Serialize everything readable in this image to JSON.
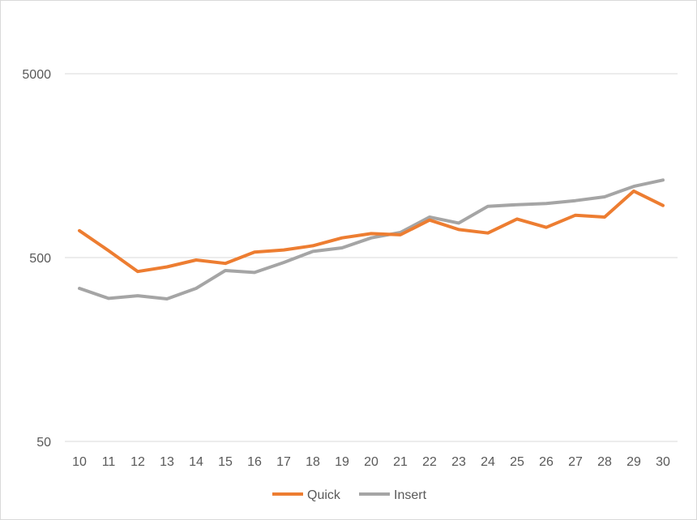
{
  "chart_data": {
    "type": "line",
    "y_scale": "log",
    "ylim": [
      50,
      10000
    ],
    "y_ticks": [
      "50",
      "500",
      "5000"
    ],
    "y_tick_values": [
      50,
      500,
      5000
    ],
    "categories": [
      "10",
      "11",
      "12",
      "13",
      "14",
      "15",
      "16",
      "17",
      "18",
      "19",
      "20",
      "21",
      "22",
      "23",
      "24",
      "25",
      "26",
      "27",
      "28",
      "29",
      "30"
    ],
    "grid": true,
    "legend_position": "bottom",
    "series": [
      {
        "name": "Quick",
        "color": "#ed7d31",
        "values": [
          700,
          545,
          420,
          445,
          485,
          465,
          535,
          550,
          580,
          640,
          675,
          665,
          800,
          710,
          680,
          810,
          730,
          850,
          830,
          1150,
          960
        ]
      },
      {
        "name": "Insert",
        "color": "#a5a5a5",
        "values": [
          340,
          300,
          310,
          298,
          340,
          425,
          415,
          470,
          540,
          565,
          640,
          685,
          830,
          770,
          950,
          970,
          985,
          1020,
          1070,
          1220,
          1320
        ]
      }
    ]
  }
}
